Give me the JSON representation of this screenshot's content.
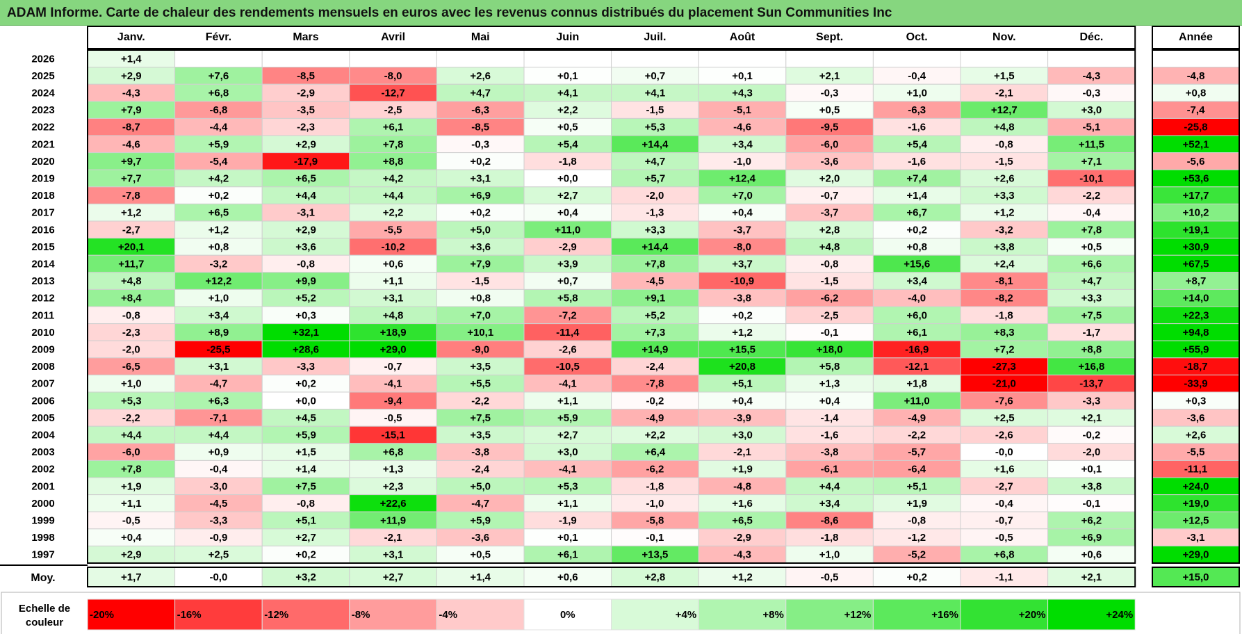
{
  "title": "ADAM Informe. Carte de chaleur des rendements mensuels en euros avec les revenus connus distribués du placement Sun Communities Inc",
  "chart_data": {
    "type": "heatmap",
    "columns": [
      "Janv.",
      "Févr.",
      "Mars",
      "Avril",
      "Mai",
      "Juin",
      "Juil.",
      "Août",
      "Sept.",
      "Oct.",
      "Nov.",
      "Déc."
    ],
    "annual_label": "Année",
    "rows": [
      {
        "year": "2026",
        "values": [
          "+1,4",
          "",
          "",
          "",
          "",
          "",
          "",
          "",
          "",
          "",
          "",
          ""
        ],
        "annual": ""
      },
      {
        "year": "2025",
        "values": [
          "+2,9",
          "+7,6",
          "-8,5",
          "-8,0",
          "+2,6",
          "+0,1",
          "+0,7",
          "+0,1",
          "+2,1",
          "-0,4",
          "+1,5",
          "-4,3"
        ],
        "annual": "-4,8"
      },
      {
        "year": "2024",
        "values": [
          "-4,3",
          "+6,8",
          "-2,9",
          "-12,7",
          "+4,7",
          "+4,1",
          "+4,1",
          "+4,3",
          "-0,3",
          "+1,0",
          "-2,1",
          "-0,3"
        ],
        "annual": "+0,8"
      },
      {
        "year": "2023",
        "values": [
          "+7,9",
          "-6,8",
          "-3,5",
          "-2,5",
          "-6,3",
          "+2,2",
          "-1,5",
          "-5,1",
          "+0,5",
          "-6,3",
          "+12,7",
          "+3,0"
        ],
        "annual": "-7,4"
      },
      {
        "year": "2022",
        "values": [
          "-8,7",
          "-4,4",
          "-2,3",
          "+6,1",
          "-8,5",
          "+0,5",
          "+5,3",
          "-4,6",
          "-9,5",
          "-1,6",
          "+4,8",
          "-5,1"
        ],
        "annual": "-25,8"
      },
      {
        "year": "2021",
        "values": [
          "-4,6",
          "+5,9",
          "+2,9",
          "+7,8",
          "-0,3",
          "+5,4",
          "+14,4",
          "+3,4",
          "-6,0",
          "+5,4",
          "-0,8",
          "+11,5"
        ],
        "annual": "+52,1"
      },
      {
        "year": "2020",
        "values": [
          "+9,7",
          "-5,4",
          "-17,9",
          "+8,8",
          "+0,2",
          "-1,8",
          "+4,7",
          "-1,0",
          "-3,6",
          "-1,6",
          "-1,5",
          "+7,1"
        ],
        "annual": "-5,6"
      },
      {
        "year": "2019",
        "values": [
          "+7,7",
          "+4,2",
          "+6,5",
          "+4,2",
          "+3,1",
          "+0,0",
          "+5,7",
          "+12,4",
          "+2,0",
          "+7,4",
          "+2,6",
          "-10,1"
        ],
        "annual": "+53,6"
      },
      {
        "year": "2018",
        "values": [
          "-7,8",
          "+0,2",
          "+4,4",
          "+4,4",
          "+6,9",
          "+2,7",
          "-2,0",
          "+7,0",
          "-0,7",
          "+1,4",
          "+3,3",
          "-2,2"
        ],
        "annual": "+17,7"
      },
      {
        "year": "2017",
        "values": [
          "+1,2",
          "+6,5",
          "-3,1",
          "+2,2",
          "+0,2",
          "+0,4",
          "-1,3",
          "+0,4",
          "-3,7",
          "+6,7",
          "+1,2",
          "-0,4"
        ],
        "annual": "+10,2"
      },
      {
        "year": "2016",
        "values": [
          "-2,7",
          "+1,2",
          "+2,9",
          "-5,5",
          "+5,0",
          "+11,0",
          "+3,3",
          "-3,7",
          "+2,8",
          "+0,2",
          "-3,2",
          "+7,8"
        ],
        "annual": "+19,1"
      },
      {
        "year": "2015",
        "values": [
          "+20,1",
          "+0,8",
          "+3,6",
          "-10,2",
          "+3,6",
          "-2,9",
          "+14,4",
          "-8,0",
          "+4,8",
          "+0,8",
          "+3,8",
          "+0,5"
        ],
        "annual": "+30,9"
      },
      {
        "year": "2014",
        "values": [
          "+11,7",
          "-3,2",
          "-0,8",
          "+0,6",
          "+7,9",
          "+3,9",
          "+7,8",
          "+3,7",
          "-0,8",
          "+15,6",
          "+2,4",
          "+6,6"
        ],
        "annual": "+67,5"
      },
      {
        "year": "2013",
        "values": [
          "+4,8",
          "+12,2",
          "+9,9",
          "+1,1",
          "-1,5",
          "+0,7",
          "-4,5",
          "-10,9",
          "-1,5",
          "+3,4",
          "-8,1",
          "+4,7"
        ],
        "annual": "+8,7"
      },
      {
        "year": "2012",
        "values": [
          "+8,4",
          "+1,0",
          "+5,2",
          "+3,1",
          "+0,8",
          "+5,8",
          "+9,1",
          "-3,8",
          "-6,2",
          "-4,0",
          "-8,2",
          "+3,3"
        ],
        "annual": "+14,0"
      },
      {
        "year": "2011",
        "values": [
          "-0,8",
          "+3,4",
          "+0,3",
          "+4,8",
          "+7,0",
          "-7,2",
          "+5,2",
          "+0,2",
          "-2,5",
          "+6,0",
          "-1,8",
          "+7,5"
        ],
        "annual": "+22,3"
      },
      {
        "year": "2010",
        "values": [
          "-2,3",
          "+8,9",
          "+32,1",
          "+18,9",
          "+10,1",
          "-11,4",
          "+7,3",
          "+1,2",
          "-0,1",
          "+6,1",
          "+8,3",
          "-1,7"
        ],
        "annual": "+94,8"
      },
      {
        "year": "2009",
        "values": [
          "-2,0",
          "-25,5",
          "+28,6",
          "+29,0",
          "-9,0",
          "-2,6",
          "+14,9",
          "+15,5",
          "+18,0",
          "-16,9",
          "+7,2",
          "+8,8"
        ],
        "annual": "+55,9"
      },
      {
        "year": "2008",
        "values": [
          "-6,5",
          "+3,1",
          "-3,3",
          "-0,7",
          "+3,5",
          "-10,5",
          "-2,4",
          "+20,8",
          "+5,8",
          "-12,1",
          "-27,3",
          "+16,8"
        ],
        "annual": "-18,7"
      },
      {
        "year": "2007",
        "values": [
          "+1,0",
          "-4,7",
          "+0,2",
          "-4,1",
          "+5,5",
          "-4,1",
          "-7,8",
          "+5,1",
          "+1,3",
          "+1,8",
          "-21,0",
          "-13,7"
        ],
        "annual": "-33,9"
      },
      {
        "year": "2006",
        "values": [
          "+5,3",
          "+6,3",
          "+0,0",
          "-9,4",
          "-2,2",
          "+1,1",
          "-0,2",
          "+0,4",
          "+0,4",
          "+11,0",
          "-7,6",
          "-3,3"
        ],
        "annual": "+0,3"
      },
      {
        "year": "2005",
        "values": [
          "-2,2",
          "-7,1",
          "+4,5",
          "-0,5",
          "+7,5",
          "+5,9",
          "-4,9",
          "-3,9",
          "-1,4",
          "-4,9",
          "+2,5",
          "+2,1"
        ],
        "annual": "-3,6"
      },
      {
        "year": "2004",
        "values": [
          "+4,4",
          "+4,4",
          "+5,9",
          "-15,1",
          "+3,5",
          "+2,7",
          "+2,2",
          "+3,0",
          "-1,6",
          "-2,2",
          "-2,6",
          "-0,2"
        ],
        "annual": "+2,6"
      },
      {
        "year": "2003",
        "values": [
          "-6,0",
          "+0,9",
          "+1,5",
          "+6,8",
          "-3,8",
          "+3,0",
          "+6,4",
          "-2,1",
          "-3,8",
          "-5,7",
          "-0,0",
          "-2,0"
        ],
        "annual": "-5,5"
      },
      {
        "year": "2002",
        "values": [
          "+7,8",
          "-0,4",
          "+1,4",
          "+1,3",
          "-2,4",
          "-4,1",
          "-6,2",
          "+1,9",
          "-6,1",
          "-6,4",
          "+1,6",
          "+0,1"
        ],
        "annual": "-11,1"
      },
      {
        "year": "2001",
        "values": [
          "+1,9",
          "-3,0",
          "+7,5",
          "+2,3",
          "+5,0",
          "+5,3",
          "-1,8",
          "-4,8",
          "+4,4",
          "+5,1",
          "-2,7",
          "+3,8"
        ],
        "annual": "+24,0"
      },
      {
        "year": "2000",
        "values": [
          "+1,1",
          "-4,5",
          "-0,8",
          "+22,6",
          "-4,7",
          "+1,1",
          "-1,0",
          "+1,6",
          "+3,4",
          "+1,9",
          "-0,4",
          "-0,1"
        ],
        "annual": "+19,0"
      },
      {
        "year": "1999",
        "values": [
          "-0,5",
          "-3,3",
          "+5,1",
          "+11,9",
          "+5,9",
          "-1,9",
          "-5,8",
          "+6,5",
          "-8,6",
          "-0,8",
          "-0,7",
          "+6,2"
        ],
        "annual": "+12,5"
      },
      {
        "year": "1998",
        "values": [
          "+0,4",
          "-0,9",
          "+2,7",
          "-2,1",
          "-3,6",
          "+0,1",
          "-0,1",
          "-2,9",
          "-1,8",
          "-1,2",
          "-0,5",
          "+6,9"
        ],
        "annual": "-3,1"
      },
      {
        "year": "1997",
        "values": [
          "+2,9",
          "+2,5",
          "+0,2",
          "+3,1",
          "+0,5",
          "+6,1",
          "+13,5",
          "-4,3",
          "+1,0",
          "-5,2",
          "+6,8",
          "+0,6"
        ],
        "annual": "+29,0"
      }
    ],
    "average": {
      "label": "Moy.",
      "values": [
        "+1,7",
        "-0,0",
        "+3,2",
        "+2,7",
        "+1,4",
        "+0,6",
        "+2,8",
        "+1,2",
        "-0,5",
        "+0,2",
        "-1,1",
        "+2,1"
      ],
      "annual": "+15,0"
    },
    "legend": {
      "label_line1": "Echelle de",
      "label_line2": "couleur",
      "steps": [
        "-20%",
        "-16%",
        "-12%",
        "-8%",
        "-4%",
        "0%",
        "+4%",
        "+8%",
        "+12%",
        "+16%",
        "+20%",
        "+24%"
      ],
      "colors": [
        "#ff0000",
        "#ff3c3c",
        "#ff6a6a",
        "#ff9c9c",
        "#ffcaca",
        "#ffffff",
        "#d8fad8",
        "#b0f5b0",
        "#86ee86",
        "#5ce95c",
        "#33e233",
        "#00dd00"
      ]
    },
    "color_scale": {
      "neg_full": -20,
      "pos_full": 24,
      "neg_color": "#ff0000",
      "pos_color": "#00dd00",
      "mid_color": "#ffffff"
    }
  }
}
